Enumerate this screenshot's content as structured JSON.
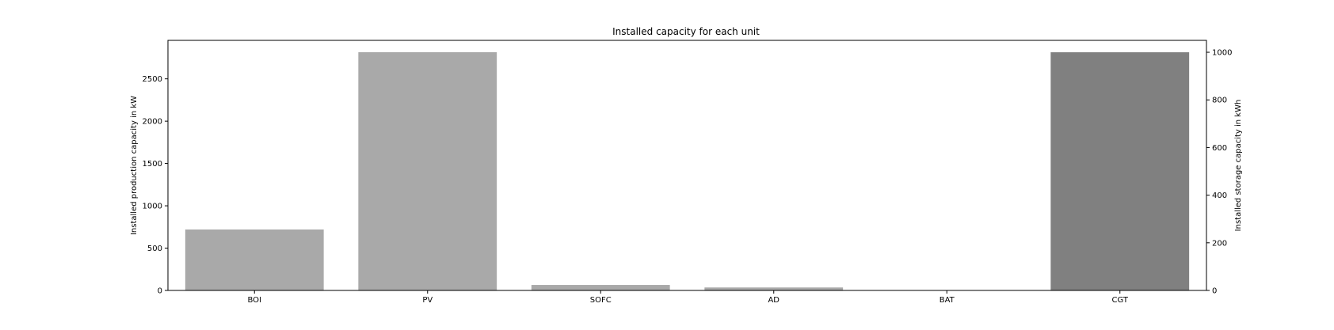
{
  "chart_data": {
    "type": "bar",
    "title": "Installed capacity for each unit",
    "xlabel": "",
    "ylabel": "Installed production capacity in kW",
    "ylabel_right": "Installed storage capacity in kWh",
    "categories": [
      "BOI",
      "PV",
      "SOFC",
      "AD",
      "BAT",
      "CGT"
    ],
    "series": [
      {
        "axis": "left",
        "color": "#a9a9a9",
        "values": [
          720,
          2815,
          65,
          35,
          0,
          null
        ]
      },
      {
        "axis": "right",
        "color": "#808080",
        "values": [
          null,
          null,
          null,
          null,
          0,
          1000
        ]
      }
    ],
    "ylim": [
      0,
      2955
    ],
    "yticks": [
      0,
      500,
      1000,
      1500,
      2000,
      2500
    ],
    "ylim_right": [
      0,
      1050
    ],
    "yticks_right": [
      0,
      200,
      400,
      600,
      800,
      1000
    ],
    "grid": false,
    "legend": "none"
  }
}
